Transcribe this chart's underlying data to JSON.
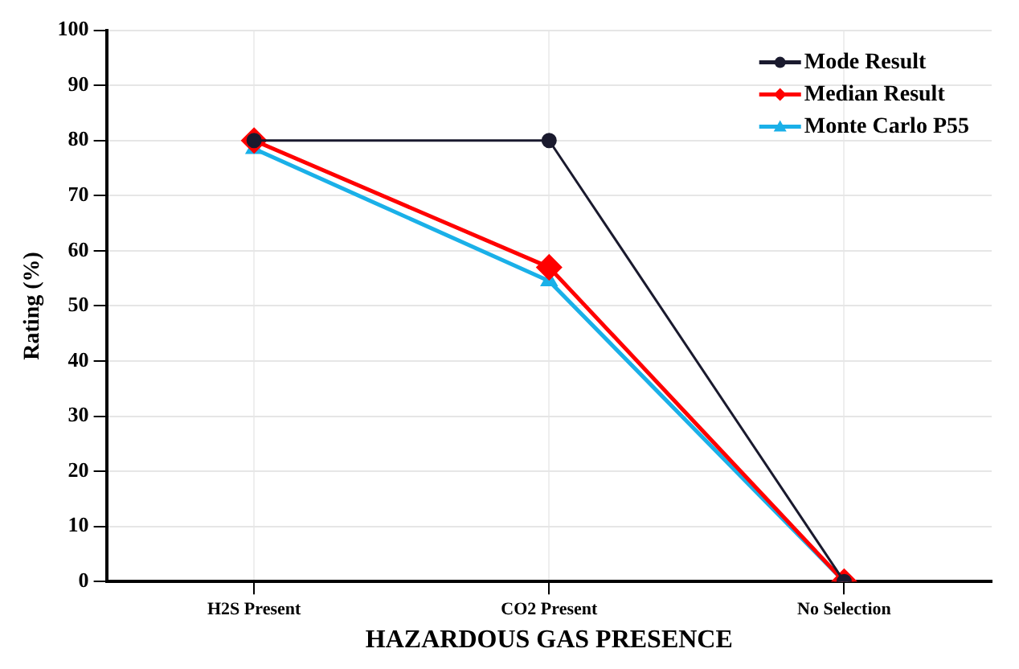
{
  "chart_data": {
    "type": "line",
    "xlabel": "HAZARDOUS GAS PRESENCE",
    "ylabel": "Rating (%)",
    "categories": [
      "H2S Present",
      "CO2 Present",
      "No Selection"
    ],
    "series": [
      {
        "name": "Mode Result",
        "color": "#1a1a2e",
        "values": [
          80,
          80,
          0
        ],
        "marker": "circle"
      },
      {
        "name": "Median Result",
        "color": "#ff0000",
        "values": [
          80,
          57,
          0
        ],
        "marker": "diamond"
      },
      {
        "name": "Monte Carlo P55",
        "color": "#1ab0e8",
        "values": [
          78.5,
          54.5,
          0
        ],
        "marker": "triangle"
      }
    ],
    "ylim": [
      0,
      100
    ],
    "yticks": [
      0,
      10,
      20,
      30,
      40,
      50,
      60,
      70,
      80,
      90,
      100
    ],
    "grid": true,
    "legend": "top right",
    "line_style": "solid"
  }
}
